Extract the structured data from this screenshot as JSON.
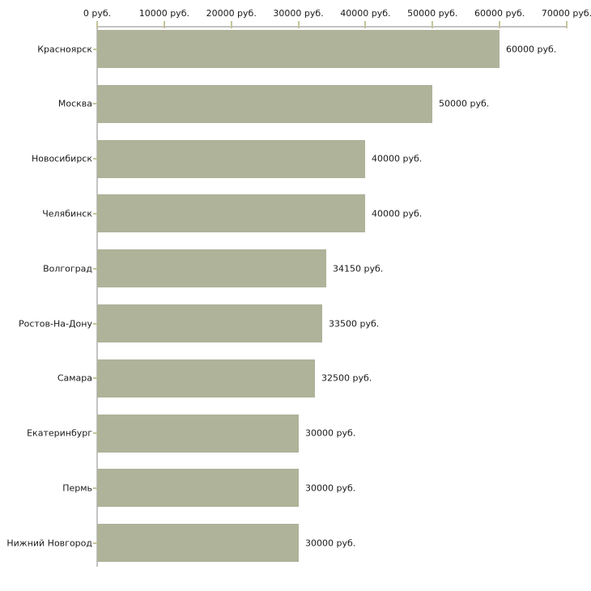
{
  "page": {
    "background": "#ffffff"
  },
  "chart_data": {
    "type": "bar",
    "orientation": "horizontal",
    "title": "",
    "categories": [
      "Красноярск",
      "Москва",
      "Новосибирск",
      "Челябинск",
      "Волгоград",
      "Ростов-На-Дону",
      "Самара",
      "Екатеринбург",
      "Пермь",
      "Нижний Новгород"
    ],
    "values": [
      60000,
      50000,
      40000,
      40000,
      34150,
      33500,
      32500,
      30000,
      30000,
      30000
    ],
    "bar_labels": [
      "60000 руб.",
      "50000 руб.",
      "40000 руб.",
      "40000 руб.",
      "34150 руб.",
      "33500 руб.",
      "32500 руб.",
      "30000 руб.",
      "30000 руб.",
      "30000 руб."
    ],
    "x_axis": {
      "position": "top",
      "min": 0,
      "max": 70000,
      "tick_step": 10000,
      "tick_values": [
        0,
        10000,
        20000,
        30000,
        40000,
        50000,
        60000,
        70000
      ],
      "tick_labels": [
        "0 руб.",
        "10000 руб.",
        "20000 руб.",
        "30000 руб.",
        "40000 руб.",
        "50000 руб.",
        "60000 руб.",
        "70000 руб."
      ],
      "unit": "руб."
    },
    "grid": false,
    "legend": false,
    "colors": {
      "bar": "#aeb399",
      "axis_line": "#c3c3c3",
      "tick_mark": "#c6c39a",
      "text": "#1a1a1a",
      "background": "#ffffff"
    }
  }
}
